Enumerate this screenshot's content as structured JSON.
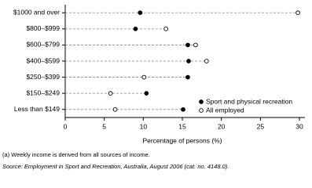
{
  "chart_data": {
    "type": "dot",
    "categories": [
      "$1000 and over",
      "$800–$999",
      "$600–$799",
      "$400–$599",
      "$250–$399",
      "$150–$249",
      "Less than $149"
    ],
    "series": [
      {
        "name": "Sport and physical recreation",
        "color": "#000000",
        "values": [
          9.6,
          9.0,
          15.7,
          15.8,
          15.7,
          10.4,
          15.1
        ]
      },
      {
        "name": "All employed",
        "color": "#ffffff",
        "values": [
          29.8,
          12.9,
          16.7,
          18.1,
          10.1,
          5.8,
          6.4
        ]
      }
    ],
    "xlabel": "Percentage of persons (%)",
    "xlim": [
      0,
      30.7
    ],
    "xticks": [
      0,
      5,
      10,
      15,
      20,
      25,
      30
    ],
    "legend": "lower right",
    "footnotes": [
      "(a) Weekly income is derived from all sources of income.",
      "Source: Employment in Sport and Recreation, Australia, August 2006 (cat. no. 4148.0)."
    ]
  }
}
